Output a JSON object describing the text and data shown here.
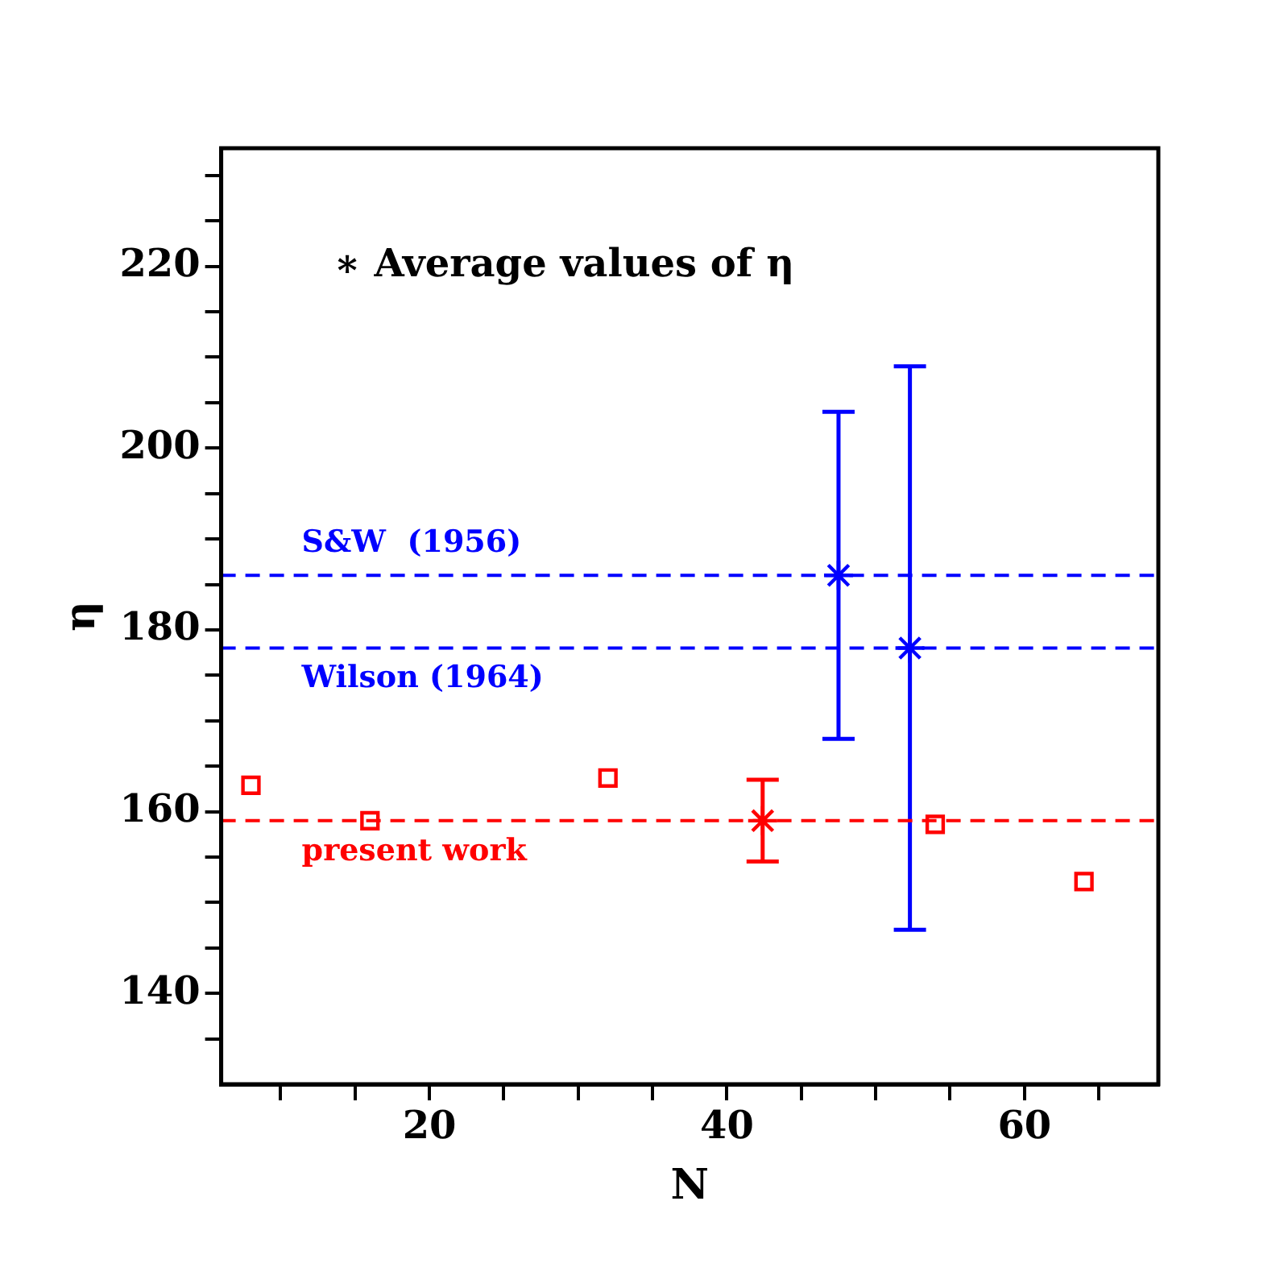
{
  "chart_data": {
    "type": "scatter",
    "xlabel": "N",
    "ylabel": "η",
    "annotations": [
      "∗ Average values of η"
    ],
    "xlim": [
      6,
      69
    ],
    "xticks": [
      {
        "value": 10,
        "label": null
      },
      {
        "value": 15,
        "label": null
      },
      20,
      {
        "value": 25,
        "label": null
      },
      {
        "value": 30,
        "label": null
      },
      {
        "value": 35,
        "label": null
      },
      40,
      {
        "value": 45,
        "label": null
      },
      {
        "value": 50,
        "label": null
      },
      {
        "value": 55,
        "label": null
      },
      60,
      {
        "value": 65,
        "label": null
      }
    ],
    "ylim": [
      130,
      233
    ],
    "yticks": [
      {
        "value": 135,
        "label": null
      },
      140,
      {
        "value": 145,
        "label": null
      },
      {
        "value": 150,
        "label": null
      },
      {
        "value": 155,
        "label": null
      },
      160,
      {
        "value": 165,
        "label": null
      },
      {
        "value": 170,
        "label": null
      },
      {
        "value": 175,
        "label": null
      },
      180,
      {
        "value": 185,
        "label": null
      },
      {
        "value": 190,
        "label": null
      },
      {
        "value": 195,
        "label": null
      },
      200,
      {
        "value": 205,
        "label": null
      },
      {
        "value": 210,
        "label": null
      },
      {
        "value": 215,
        "label": null
      },
      220,
      {
        "value": 225,
        "label": null
      },
      {
        "value": 230,
        "label": null
      }
    ],
    "grid": false,
    "legend": false,
    "series": [
      {
        "type": "scatter",
        "marker": "square",
        "color": "#ff0000",
        "x": [
          8,
          16,
          32,
          54,
          64
        ],
        "values": [
          162.9,
          159,
          163.7,
          158.6,
          152.3
        ]
      },
      {
        "type": "scatter",
        "marker": "cross",
        "color": "#ff0000",
        "x": [
          42.4
        ],
        "values": [
          159
        ],
        "errors": [
          4.5
        ]
      },
      {
        "type": "scatter",
        "marker": "cross",
        "color": "#0000ff",
        "x": [
          47.5,
          52.3
        ],
        "values": [
          186,
          178
        ],
        "errors": [
          18,
          31
        ]
      }
    ],
    "ref_lines": [
      {
        "axis": "y",
        "value": 186,
        "label": "S&W  (1956)",
        "color": "#0000ff",
        "line_style": "dashed"
      },
      {
        "axis": "y",
        "value": 178,
        "label": "Wilson (1964)",
        "color": "#0000ff",
        "line_style": "dashed"
      },
      {
        "axis": "y",
        "value": 159,
        "label": "present work",
        "color": "#ff0000",
        "line_style": "dashed"
      }
    ]
  }
}
